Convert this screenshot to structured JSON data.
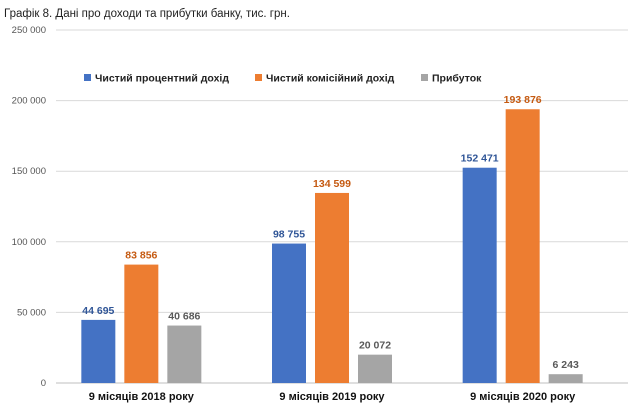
{
  "chart_data": {
    "type": "bar",
    "title": "Графік 8. Дані про доходи та прибутки банку, тис. грн.",
    "categories": [
      "9 місяців  2018 року",
      "9 місяців  2019 року",
      "9 місяців  2020 року"
    ],
    "series": [
      {
        "name": "Чистий процентний дохід",
        "color": "#4472c4",
        "label_color": "#2f5597",
        "values": [
          44695,
          98755,
          152471
        ],
        "labels": [
          "44 695",
          "98 755",
          "152 471"
        ]
      },
      {
        "name": "Чистий комісійний дохід",
        "color": "#ed7d31",
        "label_color": "#c55a11",
        "values": [
          83856,
          134599,
          193876
        ],
        "labels": [
          "83 856",
          "134 599",
          "193 876"
        ]
      },
      {
        "name": "Прибуток",
        "color": "#a5a5a5",
        "label_color": "#595959",
        "values": [
          40686,
          20072,
          6243
        ],
        "labels": [
          "40 686",
          "20 072",
          "6 243"
        ]
      }
    ],
    "ylim": [
      0,
      250000
    ],
    "yticks": [
      0,
      50000,
      100000,
      150000,
      200000,
      250000
    ],
    "ytick_labels": [
      "0",
      "50 000",
      "100 000",
      "150 000",
      "200 000",
      "250 000"
    ],
    "grid": true,
    "legend_position": "top"
  }
}
